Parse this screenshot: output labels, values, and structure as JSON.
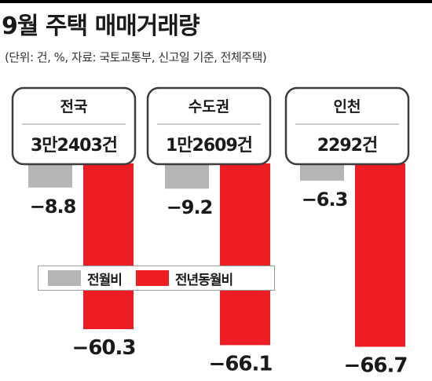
{
  "title": "9월 주택 매매거래량",
  "subtitle": "(단위: 건, %, 자료: 국토교통부, 신고일 기준, 전체주택)",
  "colors": {
    "prev_month": "#b5b5b5",
    "prev_year": "#ee1d23",
    "box_border": "#3c3c3c"
  },
  "chart_data": {
    "type": "bar",
    "categories": [
      "전국",
      "수도권",
      "인천"
    ],
    "totals": [
      "3만2403건",
      "1만2609건",
      "2292건"
    ],
    "series": [
      {
        "name": "전월비",
        "values": [
          -8.8,
          -9.2,
          -6.3
        ]
      },
      {
        "name": "전년동월비",
        "values": [
          -60.3,
          -66.1,
          -66.7
        ]
      }
    ],
    "value_labels": [
      [
        "-8.8",
        "-9.2",
        "-6.3"
      ],
      [
        "-60.3",
        "-66.1",
        "-66.7"
      ]
    ],
    "ylim": [
      -70,
      0
    ],
    "grid": false,
    "legend_position": "middle-left"
  }
}
